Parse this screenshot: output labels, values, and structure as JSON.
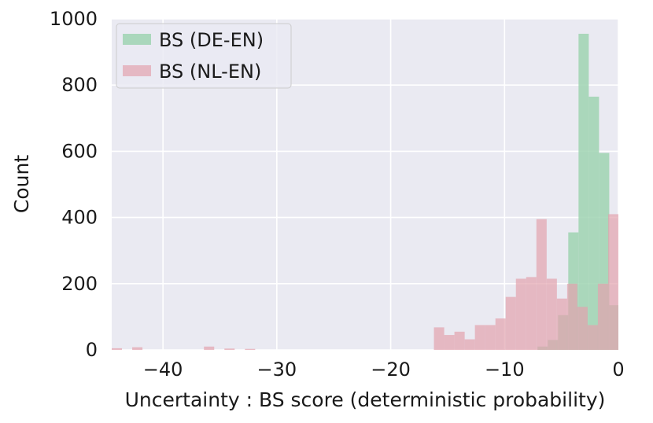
{
  "chart_data": {
    "type": "bar",
    "title": "",
    "xlabel": "Uncertainty : BS score (deterministic probability)",
    "ylabel": "Count",
    "xlim": [
      -44.5,
      0
    ],
    "ylim": [
      0,
      1000
    ],
    "xticks": [
      -40,
      -30,
      -20,
      -10,
      0
    ],
    "xtick_labels": [
      "−40",
      "−30",
      "−20",
      "−10",
      "0"
    ],
    "yticks": [
      0,
      200,
      400,
      600,
      800,
      1000
    ],
    "ytick_labels": [
      "0",
      "200",
      "400",
      "600",
      "800",
      "1000"
    ],
    "grid": true,
    "legend_position": "top-left",
    "background": "#eaeaf2",
    "series": [
      {
        "name": "BS (DE-EN)",
        "color": "#9fd3b2",
        "bin_width": 0.9,
        "bins": [
          {
            "x": -8.0,
            "y": 0
          },
          {
            "x": -7.1,
            "y": 10
          },
          {
            "x": -6.2,
            "y": 30
          },
          {
            "x": -5.3,
            "y": 105
          },
          {
            "x": -4.4,
            "y": 355
          },
          {
            "x": -3.5,
            "y": 955
          },
          {
            "x": -2.6,
            "y": 765
          },
          {
            "x": -1.7,
            "y": 595
          },
          {
            "x": -0.8,
            "y": 135
          }
        ]
      },
      {
        "name": "BS (NL-EN)",
        "color": "#e3a3ae",
        "bin_width": 0.9,
        "bins": [
          {
            "x": -44.5,
            "y": 5
          },
          {
            "x": -42.7,
            "y": 8
          },
          {
            "x": -36.4,
            "y": 10
          },
          {
            "x": -34.6,
            "y": 4
          },
          {
            "x": -32.8,
            "y": 3
          },
          {
            "x": -16.2,
            "y": 68
          },
          {
            "x": -15.3,
            "y": 45
          },
          {
            "x": -14.4,
            "y": 55
          },
          {
            "x": -13.5,
            "y": 32
          },
          {
            "x": -12.6,
            "y": 75
          },
          {
            "x": -11.7,
            "y": 75
          },
          {
            "x": -10.8,
            "y": 95
          },
          {
            "x": -9.9,
            "y": 160
          },
          {
            "x": -9.0,
            "y": 215
          },
          {
            "x": -8.1,
            "y": 220
          },
          {
            "x": -7.2,
            "y": 395
          },
          {
            "x": -6.3,
            "y": 215
          },
          {
            "x": -5.4,
            "y": 155
          },
          {
            "x": -4.5,
            "y": 200
          },
          {
            "x": -3.6,
            "y": 130
          },
          {
            "x": -2.7,
            "y": 75
          },
          {
            "x": -1.8,
            "y": 200
          },
          {
            "x": -0.9,
            "y": 410
          },
          {
            "x": 0.0,
            "y": 28
          }
        ]
      }
    ]
  }
}
